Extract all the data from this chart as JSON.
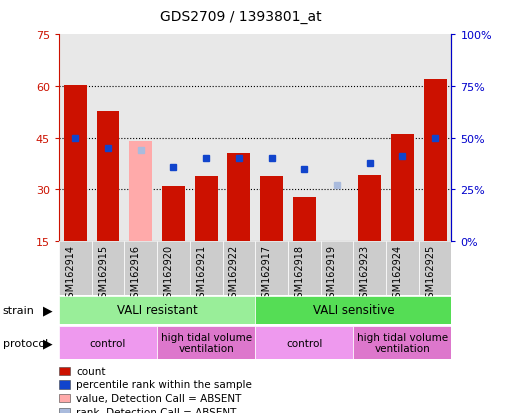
{
  "title": "GDS2709 / 1393801_at",
  "samples": [
    "GSM162914",
    "GSM162915",
    "GSM162916",
    "GSM162920",
    "GSM162921",
    "GSM162922",
    "GSM162917",
    "GSM162918",
    "GSM162919",
    "GSM162923",
    "GSM162924",
    "GSM162925"
  ],
  "count_values": [
    60.2,
    52.8,
    null,
    31.0,
    34.0,
    40.5,
    34.0,
    27.8,
    null,
    34.2,
    46.0,
    62.0
  ],
  "count_absent": [
    null,
    null,
    44.0,
    null,
    null,
    null,
    null,
    null,
    15.2,
    null,
    null,
    null
  ],
  "rank_values": [
    50,
    45,
    null,
    36,
    40,
    40,
    40,
    35,
    null,
    38,
    41,
    50
  ],
  "rank_absent": [
    null,
    null,
    44,
    null,
    null,
    null,
    null,
    null,
    27,
    null,
    null,
    null
  ],
  "ylim_left": [
    15,
    75
  ],
  "ylim_right": [
    0,
    100
  ],
  "yticks_left": [
    15,
    30,
    45,
    60,
    75
  ],
  "yticks_right": [
    0,
    25,
    50,
    75,
    100
  ],
  "ytick_labels_right": [
    "0%",
    "25%",
    "50%",
    "75%",
    "100%"
  ],
  "bar_color_present": "#cc1100",
  "bar_color_absent": "#ffaaaa",
  "rank_color_present": "#1144cc",
  "rank_color_absent": "#aabbdd",
  "bar_bottom": 15,
  "strain_groups": [
    {
      "label": "VALI resistant",
      "start": 0,
      "end": 6,
      "color": "#99ee99"
    },
    {
      "label": "VALI sensitive",
      "start": 6,
      "end": 12,
      "color": "#55dd55"
    }
  ],
  "protocol_groups": [
    {
      "label": "control",
      "start": 0,
      "end": 3,
      "color": "#ee99ee"
    },
    {
      "label": "high tidal volume\nventilation",
      "start": 3,
      "end": 6,
      "color": "#dd77cc"
    },
    {
      "label": "control",
      "start": 6,
      "end": 9,
      "color": "#ee99ee"
    },
    {
      "label": "high tidal volume\nventilation",
      "start": 9,
      "end": 12,
      "color": "#dd77cc"
    }
  ],
  "legend_items": [
    {
      "label": "count",
      "color": "#cc1100"
    },
    {
      "label": "percentile rank within the sample",
      "color": "#1144cc"
    },
    {
      "label": "value, Detection Call = ABSENT",
      "color": "#ffaaaa"
    },
    {
      "label": "rank, Detection Call = ABSENT",
      "color": "#aabbdd"
    }
  ],
  "background_color": "#ffffff",
  "axis_color_left": "#cc1100",
  "axis_color_right": "#0000cc",
  "rank_marker_size": 5,
  "col_bg_color": "#cccccc",
  "figsize": [
    5.13,
    4.14
  ],
  "dpi": 100
}
